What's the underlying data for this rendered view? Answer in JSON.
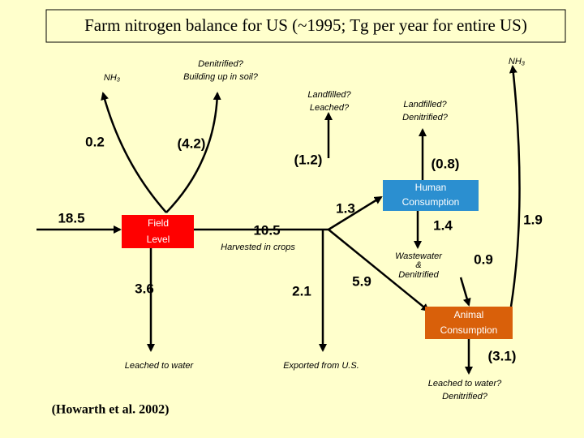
{
  "title": "Farm nitrogen balance for US (~1995; Tg per year for entire US)",
  "source": "(Howarth et al. 2002)",
  "nodes": [
    {
      "label": [
        "Field",
        "Level"
      ]
    },
    {
      "label": [
        "Human",
        "Consumption"
      ]
    },
    {
      "label": [
        "Animal",
        "Consumption"
      ]
    }
  ],
  "labels": [
    {
      "text": "NH₃"
    },
    {
      "text": [
        "Denitrified?",
        "Building up in soil?"
      ]
    },
    {
      "text": "NH₃"
    },
    {
      "text": [
        "Landfilled?",
        "Leached?"
      ]
    },
    {
      "text": [
        "Landfilled?",
        "Denitrified?"
      ]
    },
    {
      "text": "Harvested in crops"
    },
    {
      "text": [
        "Wastewater",
        "&",
        "Denitrified"
      ]
    },
    {
      "text": "Leached to water"
    },
    {
      "text": "Exported from U.S."
    },
    {
      "text": [
        "Leached to water?",
        "Denitrified?"
      ]
    }
  ],
  "flows": [
    "0.2",
    "(4.2)",
    "(1.2)",
    "(0.8)",
    "1.3",
    "18.5",
    "10.5",
    "1.4",
    "1.9",
    "0.9",
    "5.9",
    "3.6",
    "2.1",
    "(3.1)"
  ]
}
